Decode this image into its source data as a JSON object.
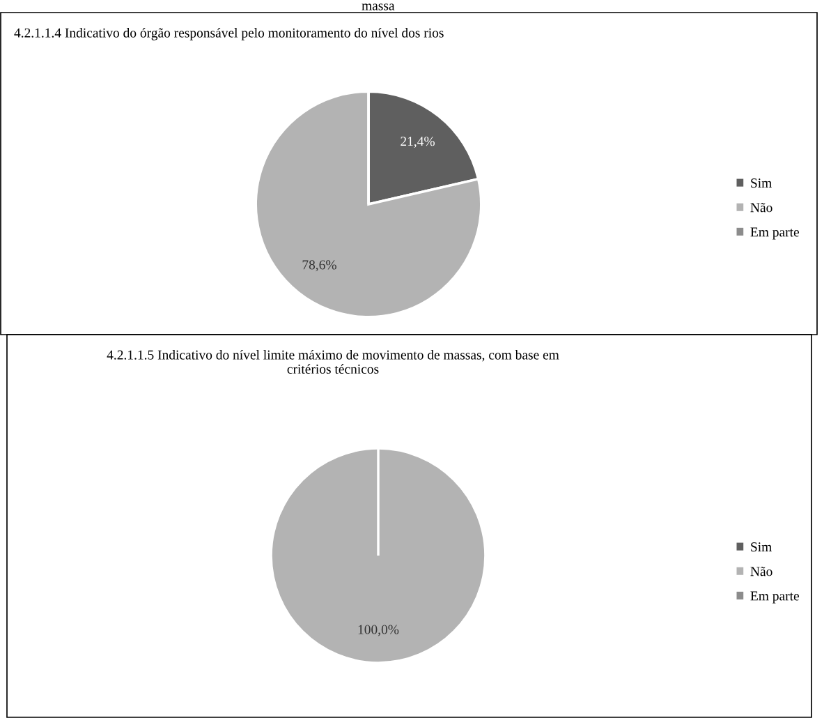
{
  "chart_data": [
    {
      "type": "pie",
      "title": "4.2.1.1.4 Indicativo do órgão responsável pelo monitoramento do nível dos rios",
      "annotations": [
        "massa"
      ],
      "categories": [
        "Sim",
        "Não",
        "Em parte"
      ],
      "values": [
        21.4,
        78.6,
        0
      ],
      "colors": [
        "#5f5f5f",
        "#b3b3b3",
        "#8c8c8c"
      ],
      "value_labels": [
        "21,4%",
        "78,6%",
        null
      ],
      "legend": "right"
    },
    {
      "type": "pie",
      "title": "4.2.1.1.5 Indicativo do nível limite máximo de movimento de massas, com base em\ncritérios técnicos",
      "categories": [
        "Sim",
        "Não",
        "Em parte"
      ],
      "values": [
        0,
        100,
        0
      ],
      "colors": [
        "#5f5f5f",
        "#b3b3b3",
        "#8c8c8c"
      ],
      "value_labels": [
        null,
        "100,0%",
        null
      ],
      "legend": "right"
    }
  ]
}
